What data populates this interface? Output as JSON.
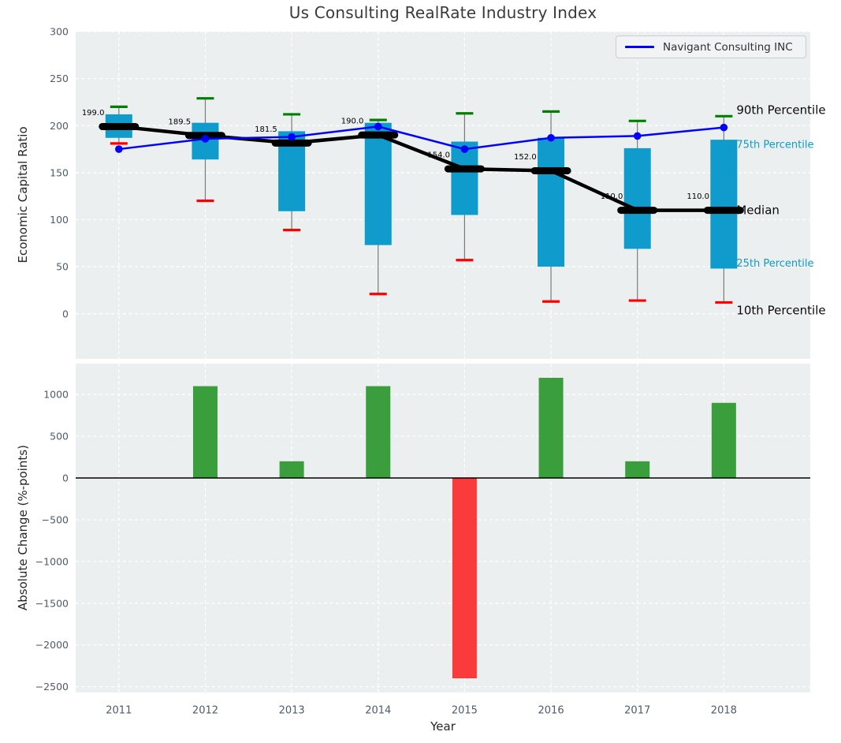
{
  "title": "Us Consulting RealRate Industry Index",
  "legend": {
    "label": "Navigant Consulting INC"
  },
  "colors": {
    "axes_background": "#eceff0",
    "grid": "#ffffff",
    "tick_label": "#4e5b6b",
    "text": "#262626",
    "box": "#0f9bcb",
    "whisker": "#7a7a7a",
    "p90_cap": "#008000",
    "p10_cap": "#ff0000",
    "median": "#000000",
    "company_line": "#0000ff",
    "bar_positive": "#3a9e3c",
    "bar_negative": "#fb3b3b",
    "zero_line": "#000000",
    "percentile_label_black": "#0a0a0a"
  },
  "chart_data": [
    {
      "type": "boxplot-line-combo",
      "title": "Us Consulting RealRate Industry Index",
      "ylabel": "Economic Capital Ratio",
      "xlim": [
        2010.5,
        2019.0
      ],
      "ylim": [
        -48,
        300
      ],
      "yticks": [
        0,
        50,
        100,
        150,
        200,
        250,
        300
      ],
      "grid": true,
      "legend_position": "upper right",
      "years": [
        2011,
        2012,
        2013,
        2014,
        2015,
        2016,
        2017,
        2018
      ],
      "boxes": {
        "p90": [
          220,
          229,
          212,
          206,
          213,
          215,
          205,
          210
        ],
        "p75": [
          212,
          203,
          194,
          203,
          183,
          187,
          176,
          185
        ],
        "median": [
          199.0,
          189.5,
          181.5,
          190.0,
          154.0,
          152.0,
          110.0,
          110.0
        ],
        "p25": [
          187,
          164,
          109,
          73,
          105,
          50,
          69,
          48
        ],
        "p10": [
          181,
          120,
          89,
          21,
          57,
          13,
          14,
          12
        ]
      },
      "median_labels": [
        "199.0",
        "189.5",
        "181.5",
        "190.0",
        "154.0",
        "152.0",
        "110.0",
        "110.0"
      ],
      "series": [
        {
          "name": "Navigant Consulting INC",
          "values": [
            175,
            186,
            188,
            199,
            175,
            187,
            189,
            198
          ]
        }
      ],
      "right_labels": [
        {
          "text": "90th Percentile",
          "anchor": "p90",
          "style": "black-large"
        },
        {
          "text": "75th Percentile",
          "anchor": "p75",
          "style": "cyan-small"
        },
        {
          "text": "Median",
          "anchor": "median",
          "style": "black-large"
        },
        {
          "text": "25th Percentile",
          "anchor": "p25",
          "style": "cyan-small"
        },
        {
          "text": "10th Percentile",
          "anchor": "p10",
          "style": "black-large"
        }
      ]
    },
    {
      "type": "bar",
      "ylabel": "Absolute Change (%-points)",
      "xlabel": "Year",
      "xlim": [
        2010.5,
        2019.0
      ],
      "ylim": [
        -2570,
        1370
      ],
      "yticks": [
        1000,
        500,
        0,
        -500,
        -1000,
        -1500,
        -2000,
        -2500
      ],
      "grid": true,
      "years": [
        2011,
        2012,
        2013,
        2014,
        2015,
        2016,
        2017,
        2018
      ],
      "values": [
        null,
        1100,
        200,
        1100,
        -2400,
        1200,
        200,
        900
      ]
    }
  ]
}
